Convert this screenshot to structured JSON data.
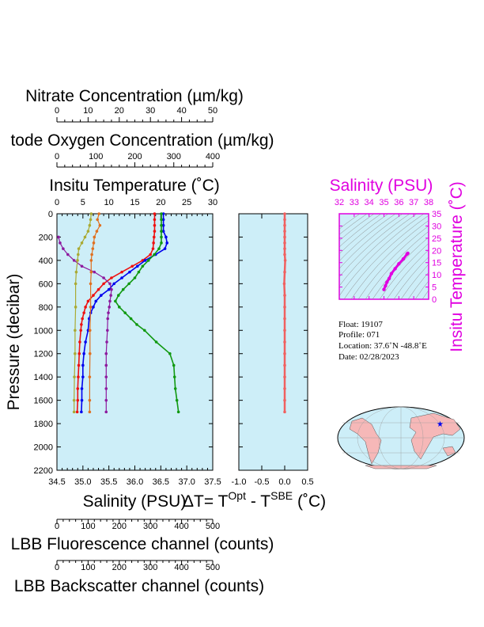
{
  "titles": {
    "nitrate": "Nitrate Concentration (µm/kg)",
    "oxygen": "tode Oxygen Concentration (µm/kg)",
    "temperature": "Insitu Temperature (˚C)",
    "pressure": "Pressure (decibar)",
    "salinity": "Salinity (PSU)",
    "delta_t_prefix": "ΔT= T",
    "delta_t_sup1": "Opt",
    "delta_t_mid": " - T",
    "delta_t_sup2": "SBE",
    "delta_t_suffix": " (˚C)",
    "fluorescence": "LBB Fluorescence channel (counts)",
    "backscatter": "LBB Backscatter channel (counts)",
    "ts_salinity": "Salinity (PSU)",
    "ts_temperature": "Insitu Temperature (˚C)"
  },
  "float_info": {
    "float": "Float:  19107",
    "profile": "Profile:  071",
    "location": "Location:  37.6˚N  -48.8˚E",
    "date": "Date:  02/28/2023"
  },
  "colors": {
    "plot_bg": "#cdeef8",
    "magenta": "#e000e0",
    "temperature": "#ee1111",
    "salinity": "#0000ee",
    "oxygen": "#119911",
    "nitrate": "#8d1a9e",
    "fluorescence": "#aaaa33",
    "backscatter": "#e07020",
    "delta_t": "#f06060"
  },
  "chart_data": [
    {
      "type": "line",
      "name": "main-profile",
      "ylabel": "Pressure (decibar)",
      "ylim": [
        2200,
        0
      ],
      "yticks": [
        "0",
        "200",
        "400",
        "600",
        "800",
        "1000",
        "1200",
        "1400",
        "1600",
        "1800",
        "2000",
        "2200"
      ],
      "axes": {
        "salinity": {
          "label": "Salinity (PSU)",
          "range": [
            34.5,
            37.5
          ],
          "ticks": [
            "34.5",
            "35.0",
            "35.5",
            "36.0",
            "36.5",
            "37.0",
            "37.5"
          ]
        },
        "temperature": {
          "label": "Insitu Temperature (˚C)",
          "range": [
            0,
            30
          ],
          "ticks": [
            "0",
            "5",
            "10",
            "15",
            "20",
            "25",
            "30"
          ]
        },
        "oxygen": {
          "label": "Oxygen Concentration (µm/kg)",
          "range": [
            0,
            400
          ],
          "ticks": [
            "0",
            "100",
            "200",
            "300",
            "400"
          ]
        },
        "nitrate": {
          "label": "Nitrate Concentration (µm/kg)",
          "range": [
            0,
            50
          ],
          "ticks": [
            "0",
            "10",
            "20",
            "30",
            "40",
            "50"
          ]
        },
        "fluorescence": {
          "label": "LBB Fluorescence channel (counts)",
          "range": [
            0,
            500
          ],
          "ticks": [
            "0",
            "100",
            "200",
            "300",
            "400",
            "500"
          ]
        },
        "backscatter": {
          "label": "LBB Backscatter channel (counts)",
          "range": [
            0,
            500
          ],
          "ticks": [
            "0",
            "100",
            "200",
            "300",
            "400",
            "500"
          ]
        }
      },
      "series": [
        {
          "key": "temperature",
          "axis": "temperature",
          "points": [
            [
              18.8,
              0
            ],
            [
              18.8,
              50
            ],
            [
              18.8,
              100
            ],
            [
              18.8,
              150
            ],
            [
              18.7,
              200
            ],
            [
              18.6,
              250
            ],
            [
              18.5,
              300
            ],
            [
              18.0,
              350
            ],
            [
              16.5,
              400
            ],
            [
              14.5,
              450
            ],
            [
              12.5,
              500
            ],
            [
              10.5,
              550
            ],
            [
              9.0,
              600
            ],
            [
              8.0,
              650
            ],
            [
              7.0,
              700
            ],
            [
              6.0,
              750
            ],
            [
              5.5,
              800
            ],
            [
              5.2,
              850
            ],
            [
              4.9,
              900
            ],
            [
              4.7,
              950
            ],
            [
              4.6,
              1000
            ],
            [
              4.4,
              1100
            ],
            [
              4.3,
              1200
            ],
            [
              4.2,
              1300
            ],
            [
              4.1,
              1400
            ],
            [
              4.0,
              1500
            ],
            [
              4.0,
              1600
            ],
            [
              3.9,
              1700
            ]
          ]
        },
        {
          "key": "salinity",
          "axis": "salinity",
          "points": [
            [
              36.55,
              0
            ],
            [
              36.55,
              50
            ],
            [
              36.55,
              100
            ],
            [
              36.55,
              150
            ],
            [
              36.6,
              200
            ],
            [
              36.62,
              250
            ],
            [
              36.58,
              300
            ],
            [
              36.4,
              350
            ],
            [
              36.2,
              400
            ],
            [
              36.05,
              450
            ],
            [
              35.9,
              500
            ],
            [
              35.75,
              550
            ],
            [
              35.6,
              600
            ],
            [
              35.5,
              650
            ],
            [
              35.35,
              700
            ],
            [
              35.25,
              750
            ],
            [
              35.2,
              800
            ],
            [
              35.15,
              850
            ],
            [
              35.12,
              900
            ],
            [
              35.1,
              1000
            ],
            [
              35.05,
              1100
            ],
            [
              35.02,
              1200
            ],
            [
              35.0,
              1300
            ],
            [
              35.0,
              1400
            ],
            [
              34.98,
              1500
            ],
            [
              34.98,
              1600
            ],
            [
              34.97,
              1700
            ]
          ]
        },
        {
          "key": "oxygen",
          "axis": "oxygen",
          "points": [
            [
              268,
              0
            ],
            [
              268,
              50
            ],
            [
              268,
              100
            ],
            [
              268,
              150
            ],
            [
              268,
              200
            ],
            [
              268,
              250
            ],
            [
              262,
              300
            ],
            [
              250,
              350
            ],
            [
              235,
              400
            ],
            [
              220,
              450
            ],
            [
              210,
              500
            ],
            [
              200,
              550
            ],
            [
              185,
              600
            ],
            [
              170,
              650
            ],
            [
              158,
              700
            ],
            [
              150,
              750
            ],
            [
              160,
              800
            ],
            [
              175,
              850
            ],
            [
              190,
              900
            ],
            [
              205,
              950
            ],
            [
              225,
              1000
            ],
            [
              255,
              1100
            ],
            [
              290,
              1200
            ],
            [
              300,
              1300
            ],
            [
              302,
              1400
            ],
            [
              304,
              1500
            ],
            [
              308,
              1600
            ],
            [
              312,
              1700
            ]
          ]
        },
        {
          "key": "nitrate",
          "axis": "nitrate",
          "points": [
            [
              0.5,
              200
            ],
            [
              1.0,
              250
            ],
            [
              2.0,
              300
            ],
            [
              3.5,
              350
            ],
            [
              5.5,
              400
            ],
            [
              8.0,
              450
            ],
            [
              12.0,
              500
            ],
            [
              15.0,
              550
            ],
            [
              17.0,
              600
            ],
            [
              17.5,
              650
            ],
            [
              17.3,
              700
            ],
            [
              17.0,
              750
            ],
            [
              16.8,
              800
            ],
            [
              16.5,
              850
            ],
            [
              16.3,
              900
            ],
            [
              16.2,
              1000
            ],
            [
              16.0,
              1100
            ],
            [
              15.8,
              1200
            ],
            [
              15.8,
              1300
            ],
            [
              15.8,
              1400
            ],
            [
              15.8,
              1500
            ],
            [
              15.8,
              1600
            ],
            [
              15.8,
              1700
            ]
          ]
        },
        {
          "key": "fluorescence",
          "axis": "fluorescence",
          "points": [
            [
              110,
              0
            ],
            [
              108,
              50
            ],
            [
              105,
              100
            ],
            [
              100,
              150
            ],
            [
              90,
              200
            ],
            [
              80,
              250
            ],
            [
              70,
              300
            ],
            [
              68,
              350
            ],
            [
              66,
              400
            ],
            [
              62,
              500
            ],
            [
              60,
              600
            ],
            [
              60,
              800
            ],
            [
              58,
              1000
            ],
            [
              58,
              1200
            ],
            [
              56,
              1400
            ],
            [
              55,
              1600
            ],
            [
              55,
              1700
            ]
          ]
        },
        {
          "key": "backscatter",
          "axis": "backscatter",
          "points": [
            [
              135,
              0
            ],
            [
              130,
              50
            ],
            [
              138,
              100
            ],
            [
              128,
              150
            ],
            [
              120,
              200
            ],
            [
              118,
              250
            ],
            [
              115,
              300
            ],
            [
              112,
              350
            ],
            [
              110,
              400
            ],
            [
              110,
              500
            ],
            [
              108,
              600
            ],
            [
              108,
              800
            ],
            [
              106,
              1000
            ],
            [
              106,
              1200
            ],
            [
              105,
              1400
            ],
            [
              105,
              1600
            ],
            [
              105,
              1700
            ]
          ]
        }
      ]
    },
    {
      "type": "line",
      "name": "delta-t",
      "xlabel": "ΔT= TOpt - TSBE (˚C)",
      "xlim": [
        -1.0,
        0.5
      ],
      "xticks": [
        "-1.0",
        "-0.5",
        "0.0",
        "0.5"
      ],
      "ylim": [
        2200,
        0
      ],
      "points": [
        [
          0.0,
          0
        ],
        [
          0.0,
          50
        ],
        [
          0.0,
          100
        ],
        [
          0.0,
          150
        ],
        [
          0.0,
          200
        ],
        [
          0.0,
          250
        ],
        [
          0.0,
          300
        ],
        [
          0.0,
          350
        ],
        [
          0.01,
          400
        ],
        [
          0.0,
          500
        ],
        [
          -0.01,
          600
        ],
        [
          0.0,
          700
        ],
        [
          0.0,
          800
        ],
        [
          0.0,
          900
        ],
        [
          0.0,
          1000
        ],
        [
          0.0,
          1100
        ],
        [
          0.0,
          1200
        ],
        [
          0.0,
          1300
        ],
        [
          0.0,
          1400
        ],
        [
          0.0,
          1500
        ],
        [
          0.0,
          1600
        ],
        [
          0.0,
          1700
        ]
      ]
    },
    {
      "type": "scatter",
      "name": "ts-diagram",
      "xlabel": "Salinity (PSU)",
      "ylabel": "Insitu Temperature (˚C)",
      "xlim": [
        32,
        38
      ],
      "ylim": [
        0,
        35
      ],
      "xticks": [
        "32",
        "33",
        "34",
        "35",
        "36",
        "37",
        "38"
      ],
      "yticks": [
        "0",
        "5",
        "10",
        "15",
        "20",
        "25",
        "30",
        "35"
      ],
      "points": [
        [
          35.0,
          4.0
        ],
        [
          35.1,
          5.5
        ],
        [
          35.2,
          7.0
        ],
        [
          35.35,
          8.5
        ],
        [
          35.5,
          10.5
        ],
        [
          35.75,
          12.5
        ],
        [
          36.0,
          14.5
        ],
        [
          36.3,
          16.5
        ],
        [
          36.55,
          18.5
        ],
        [
          36.6,
          18.8
        ]
      ]
    }
  ]
}
